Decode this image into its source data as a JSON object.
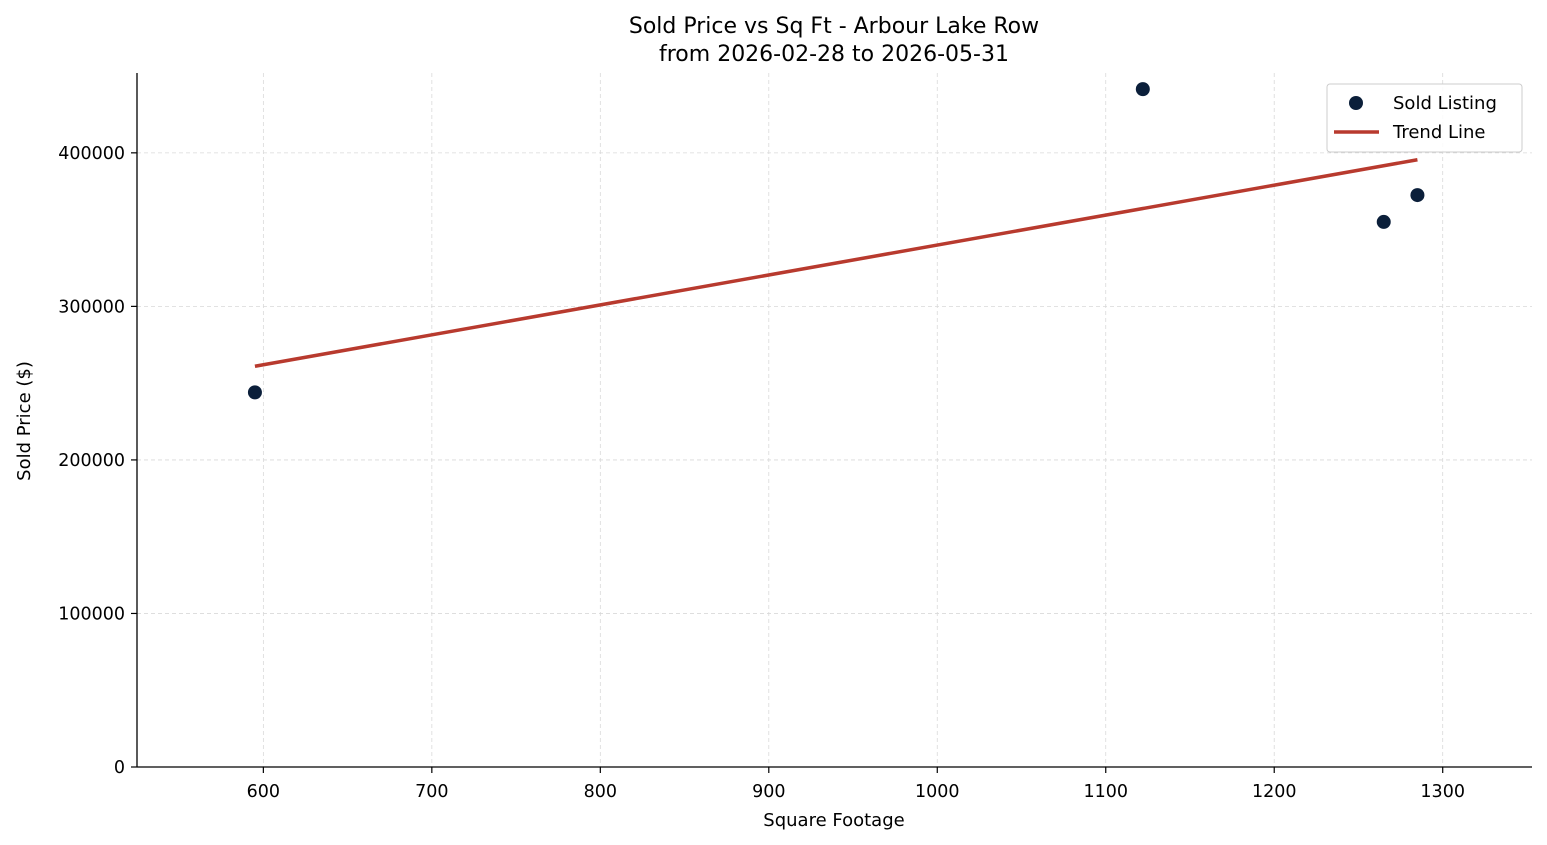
{
  "chart_data": {
    "type": "scatter",
    "title": "Sold Price vs Sq Ft - Arbour Lake Row",
    "subtitle": "from 2026-02-28 to 2026-05-31",
    "xlabel": "Square Footage",
    "ylabel": "Sold Price ($)",
    "xlim": [
      525,
      1353
    ],
    "ylim": [
      0,
      452000
    ],
    "x_ticks": [
      600,
      700,
      800,
      900,
      1000,
      1100,
      1200,
      1300
    ],
    "y_ticks": [
      0,
      100000,
      200000,
      300000,
      400000
    ],
    "grid": true,
    "legend_position": "top-right",
    "series": [
      {
        "name": "Sold Listing",
        "kind": "scatter",
        "color": "#0b1f3a",
        "points": [
          {
            "x": 595,
            "y": 244000
          },
          {
            "x": 1122,
            "y": 441500
          },
          {
            "x": 1265,
            "y": 355000
          },
          {
            "x": 1285,
            "y": 372500
          }
        ]
      },
      {
        "name": "Trend Line",
        "kind": "line",
        "color": "#b83a2e",
        "points": [
          {
            "x": 595,
            "y": 261000
          },
          {
            "x": 1285,
            "y": 395500
          }
        ]
      }
    ]
  }
}
